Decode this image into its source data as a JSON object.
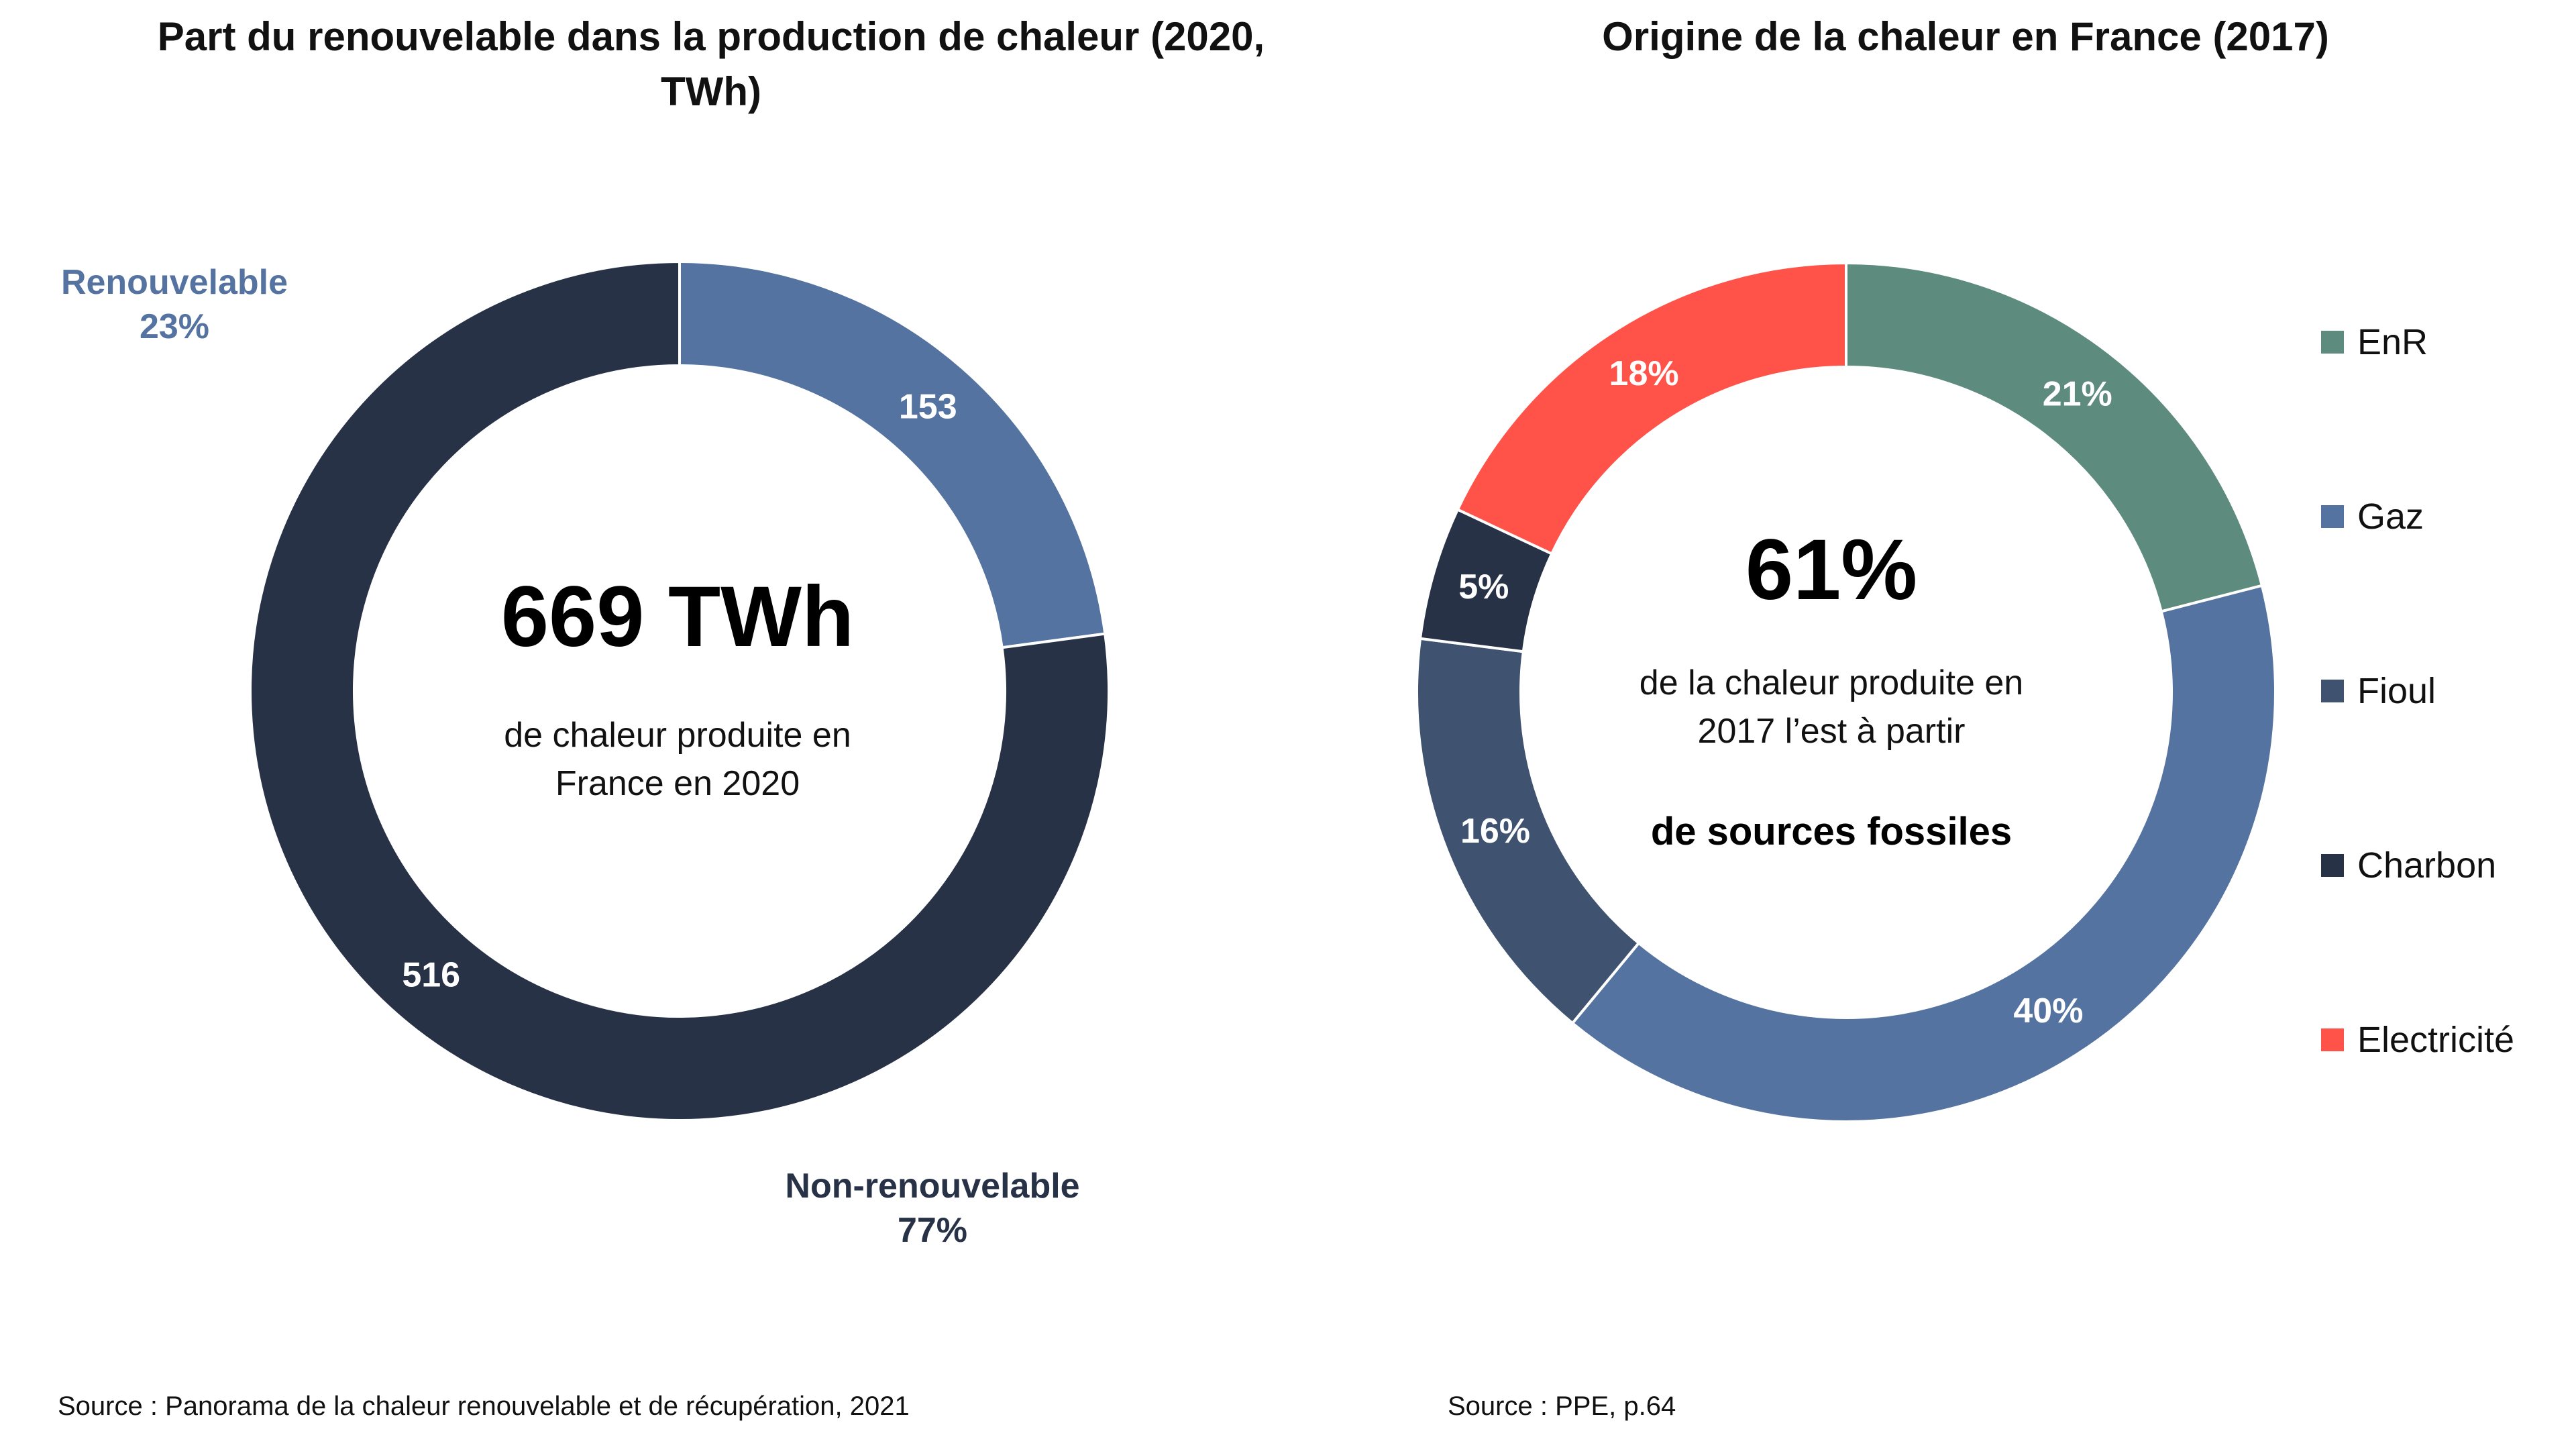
{
  "chart_data": [
    {
      "type": "pie",
      "variant": "donut",
      "title": "Part du renouvelable dans la production de chaleur (2020, TWh)",
      "categories": [
        "Renouvelable",
        "Non-renouvelable"
      ],
      "values": [
        153,
        516
      ],
      "value_labels": [
        "153",
        "516"
      ],
      "category_labels": [
        {
          "name": "Renouvelable",
          "share": "23%"
        },
        {
          "name": "Non-renouvelable",
          "share": "77%"
        }
      ],
      "colors": [
        "#5573a0",
        "#283247"
      ],
      "center": {
        "headline": "669 TWh",
        "text_lines": [
          "de chaleur produite en",
          "France en 2020"
        ]
      },
      "source": "Source : Panorama de la chaleur renouvelable et de récupération, 2021"
    },
    {
      "type": "pie",
      "variant": "donut",
      "title": "Origine de la chaleur en France (2017)",
      "categories": [
        "EnR",
        "Gaz",
        "Fioul",
        "Charbon",
        "Electricité"
      ],
      "values": [
        21,
        40,
        16,
        5,
        18
      ],
      "value_labels": [
        "21%",
        "40%",
        "16%",
        "5%",
        "18%"
      ],
      "colors": [
        "#5d8b7e",
        "#5573a0",
        "#3f5270",
        "#283247",
        "#ff534a"
      ],
      "legend": "right",
      "center": {
        "headline": "61%",
        "text_lines": [
          "de la chaleur produite en",
          "2017 l’est à partir"
        ],
        "bold_line": "de sources fossiles"
      },
      "source": "Source : PPE, p.64"
    }
  ]
}
